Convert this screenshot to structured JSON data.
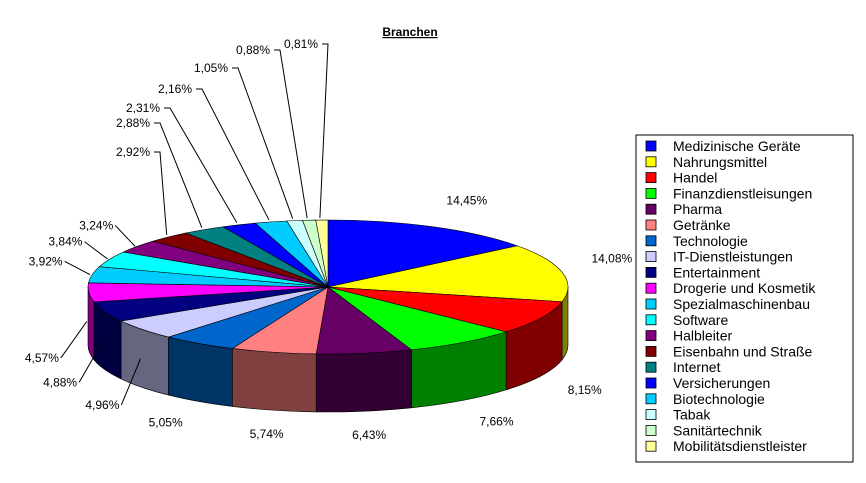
{
  "chart_data": {
    "type": "pie",
    "title": "Branchen",
    "three_d": true,
    "legend_position": "right",
    "categories": [
      "Medizinische Geräte",
      "Nahrungsmittel",
      "Handel",
      "Finanzdienstleisungen",
      "Pharma",
      "Getränke",
      "Technologie",
      "IT-Dienstleistungen",
      "Entertainment",
      "Drogerie und Kosmetik",
      "Spezialmaschinenbau",
      "Software",
      "Halbleiter",
      "Eisenbahn und Straße",
      "Internet",
      "Versicherungen",
      "Biotechnologie",
      "Tabak",
      "Sanitärtechnik",
      "Mobilitätsdienstleister"
    ],
    "values": [
      14.45,
      14.08,
      8.15,
      7.66,
      6.43,
      5.74,
      5.05,
      4.96,
      4.88,
      4.57,
      3.92,
      3.84,
      3.24,
      2.92,
      2.88,
      2.31,
      2.16,
      1.05,
      0.88,
      0.81
    ],
    "data_labels": [
      "14,45%",
      "14,08%",
      "8,15%",
      "7,66%",
      "6,43%",
      "5,74%",
      "5,05%",
      "4,96%",
      "4,88%",
      "4,57%",
      "3,92%",
      "3,84%",
      "3,24%",
      "2,92%",
      "2,88%",
      "2,31%",
      "2,16%",
      "1,05%",
      "0,88%",
      "0,81%"
    ],
    "colors": [
      "#0000ff",
      "#ffff00",
      "#ff0000",
      "#00ff00",
      "#660066",
      "#ff8080",
      "#0066cc",
      "#ccccff",
      "#000080",
      "#ff00ff",
      "#00ccff",
      "#00ffff",
      "#800080",
      "#800000",
      "#008080",
      "#0000ff",
      "#00ccff",
      "#ccffff",
      "#ccffcc",
      "#ffff99"
    ]
  }
}
